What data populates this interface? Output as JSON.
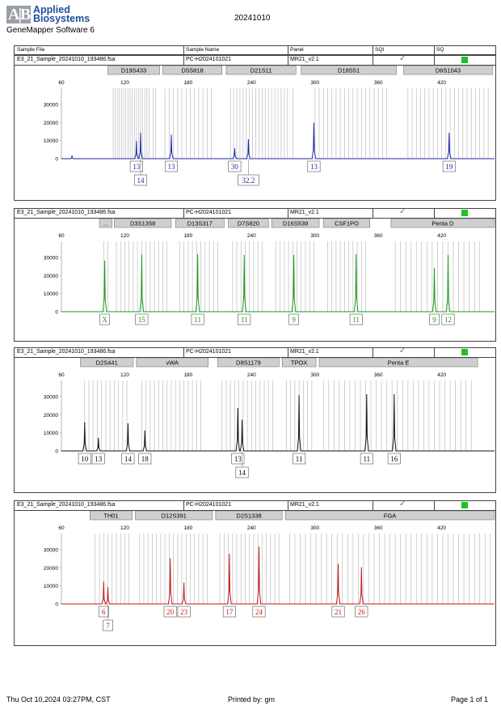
{
  "header": {
    "logo_mark": "A|B",
    "logo_line1": "Applied",
    "logo_line2": "Biosystems",
    "software": "GeneMapper Software 6",
    "date": "20241010",
    "columns": [
      "Sample File",
      "Sample Name",
      "Panel",
      "SQI",
      "SQ"
    ]
  },
  "footer": {
    "printed_at": "Thu Oct 10,2024 03:27PM, CST",
    "printed_by": "Printed by: gm",
    "page": "Page 1 of 1"
  },
  "colors": {
    "blue": "#1c2aa6",
    "green": "#1a9a1a",
    "black": "#111111",
    "red": "#c41a1a",
    "sq": "#22c022",
    "check": "#2e9a2e"
  },
  "panels": [
    {
      "sample_file": "E3_21_Sample_20241010_193486.fsa",
      "sample_name": "PC-H2024101021",
      "panel": "MR21_v2.1"
    },
    {
      "sample_file": "E3_21_Sample_20241010_193486.fsa",
      "sample_name": "PC-H2024101021",
      "panel": "MR21_v2.1"
    },
    {
      "sample_file": "E3_21_Sample_20241010_193486.fsa",
      "sample_name": "PC-H2024101021",
      "panel": "MR21_v2.1"
    },
    {
      "sample_file": "E3_21_Sample_20241010_193486.fsa",
      "sample_name": "PC-H2024101021",
      "panel": "MR21_v2.1"
    }
  ],
  "chart_data": [
    {
      "type": "line",
      "dye": "blue",
      "xlim": [
        60,
        470
      ],
      "ylim": [
        0,
        38000
      ],
      "x_ticks": [
        60,
        120,
        180,
        240,
        300,
        360,
        420
      ],
      "y_ticks": [
        0,
        10000,
        20000,
        30000
      ],
      "loci": [
        {
          "name": "D19S433",
          "range": [
            104,
            153
          ]
        },
        {
          "name": "D5S818",
          "range": [
            156,
            212
          ]
        },
        {
          "name": "D21S11",
          "range": [
            216,
            282
          ]
        },
        {
          "name": "D18S51",
          "range": [
            287,
            377
          ]
        },
        {
          "name": "D6S1043",
          "range": [
            384,
            468
          ]
        }
      ],
      "bins": [
        109,
        111,
        113,
        115,
        117,
        119,
        121,
        123,
        125,
        127,
        129,
        131,
        133,
        135,
        137,
        139,
        141,
        143,
        147,
        149,
        158,
        162,
        166,
        170,
        174,
        178,
        182,
        186,
        190,
        194,
        198,
        202,
        220,
        223,
        226,
        229,
        232,
        235,
        238,
        241,
        244,
        247,
        250,
        253,
        256,
        259,
        262,
        265,
        268,
        271,
        274,
        279,
        300,
        304,
        308,
        312,
        316,
        320,
        324,
        328,
        332,
        336,
        340,
        344,
        348,
        352,
        356,
        360,
        364,
        368,
        388,
        392,
        396,
        400,
        404,
        408,
        412,
        416,
        420,
        424,
        428,
        432,
        436,
        440,
        444,
        448,
        452,
        456,
        460,
        464
      ],
      "peaks": [
        {
          "x": 70,
          "y": 1500
        },
        {
          "x": 131,
          "y": 9500
        },
        {
          "x": 135,
          "y": 14000
        },
        {
          "x": 164,
          "y": 13000
        },
        {
          "x": 224,
          "y": 5500
        },
        {
          "x": 237,
          "y": 10500
        },
        {
          "x": 299,
          "y": 19500
        },
        {
          "x": 427,
          "y": 14000
        }
      ],
      "labels": [
        {
          "x": 131,
          "row": 0,
          "text": "13"
        },
        {
          "x": 135,
          "row": 1,
          "text": "14"
        },
        {
          "x": 164,
          "row": 0,
          "text": "13"
        },
        {
          "x": 224,
          "row": 0,
          "text": "30"
        },
        {
          "x": 237,
          "row": 1,
          "text": "32.2"
        },
        {
          "x": 299,
          "row": 0,
          "text": "13"
        },
        {
          "x": 427,
          "row": 0,
          "text": "19"
        }
      ]
    },
    {
      "type": "line",
      "dye": "green",
      "xlim": [
        60,
        470
      ],
      "ylim": [
        0,
        38000
      ],
      "x_ticks": [
        60,
        120,
        180,
        240,
        300,
        360,
        420
      ],
      "y_ticks": [
        0,
        10000,
        20000,
        30000
      ],
      "loci": [
        {
          "name": "...",
          "range": [
            96,
            108
          ]
        },
        {
          "name": "D3S1358",
          "range": [
            110,
            164
          ]
        },
        {
          "name": "D13S317",
          "range": [
            168,
            214
          ]
        },
        {
          "name": "D7S820",
          "range": [
            218,
            256
          ]
        },
        {
          "name": "D16S539",
          "range": [
            259,
            304
          ]
        },
        {
          "name": "CSF1PO",
          "range": [
            308,
            352
          ]
        },
        {
          "name": "Penta D",
          "range": [
            372,
            470
          ]
        }
      ],
      "bins": [
        100,
        104,
        112,
        116,
        120,
        124,
        128,
        132,
        136,
        140,
        144,
        148,
        152,
        156,
        160,
        172,
        176,
        180,
        184,
        188,
        192,
        196,
        200,
        204,
        208,
        222,
        226,
        230,
        234,
        238,
        242,
        246,
        250,
        263,
        267,
        271,
        275,
        279,
        283,
        287,
        291,
        295,
        299,
        312,
        316,
        320,
        324,
        328,
        332,
        336,
        340,
        344,
        348,
        376,
        381,
        386,
        391,
        396,
        401,
        406,
        411,
        416,
        421,
        426,
        431,
        436,
        441,
        446,
        451,
        456
      ],
      "peaks": [
        {
          "x": 101,
          "y": 28000
        },
        {
          "x": 136,
          "y": 31500
        },
        {
          "x": 189,
          "y": 31500
        },
        {
          "x": 233,
          "y": 31000
        },
        {
          "x": 280,
          "y": 31000
        },
        {
          "x": 339,
          "y": 31500
        },
        {
          "x": 413,
          "y": 24000
        },
        {
          "x": 426,
          "y": 31000
        }
      ],
      "labels": [
        {
          "x": 101,
          "row": 0,
          "text": "X"
        },
        {
          "x": 136,
          "row": 0,
          "text": "15"
        },
        {
          "x": 189,
          "row": 0,
          "text": "11"
        },
        {
          "x": 233,
          "row": 0,
          "text": "11"
        },
        {
          "x": 280,
          "row": 0,
          "text": "9"
        },
        {
          "x": 339,
          "row": 0,
          "text": "11"
        },
        {
          "x": 413,
          "row": 0,
          "text": "9"
        },
        {
          "x": 426,
          "row": 0,
          "text": "12"
        }
      ]
    },
    {
      "type": "line",
      "dye": "black",
      "xlim": [
        60,
        470
      ],
      "ylim": [
        0,
        38000
      ],
      "x_ticks": [
        60,
        120,
        180,
        240,
        300,
        360,
        420
      ],
      "y_ticks": [
        0,
        10000,
        20000,
        30000
      ],
      "loci": [
        {
          "name": "D2S441",
          "range": [
            78,
            128
          ]
        },
        {
          "name": "vWA",
          "range": [
            131,
            199
          ]
        },
        {
          "name": "D8S1179",
          "range": [
            208,
            266
          ]
        },
        {
          "name": "TPOX",
          "range": [
            269,
            301
          ]
        },
        {
          "name": "Penta E",
          "range": [
            304,
            454
          ]
        }
      ],
      "bins": [
        82,
        86,
        90,
        94,
        98,
        102,
        106,
        110,
        114,
        118,
        122,
        136,
        140,
        144,
        148,
        152,
        156,
        160,
        164,
        168,
        172,
        176,
        180,
        184,
        188,
        192,
        212,
        216,
        220,
        224,
        228,
        232,
        236,
        240,
        244,
        248,
        252,
        256,
        260,
        273,
        277,
        281,
        285,
        289,
        293,
        297,
        308,
        313,
        318,
        323,
        328,
        333,
        338,
        343,
        348,
        353,
        358,
        363,
        368,
        373,
        378,
        383,
        388,
        393,
        398,
        403,
        408,
        413,
        418,
        423,
        428,
        433,
        438,
        443,
        448
      ],
      "peaks": [
        {
          "x": 82,
          "y": 15500
        },
        {
          "x": 95,
          "y": 7000
        },
        {
          "x": 123,
          "y": 15000
        },
        {
          "x": 139,
          "y": 11000
        },
        {
          "x": 227,
          "y": 23500
        },
        {
          "x": 231,
          "y": 17000
        },
        {
          "x": 285,
          "y": 30500
        },
        {
          "x": 349,
          "y": 31000
        },
        {
          "x": 375,
          "y": 31000
        }
      ],
      "labels": [
        {
          "x": 82,
          "row": 0,
          "text": "10"
        },
        {
          "x": 95,
          "row": 0,
          "text": "13"
        },
        {
          "x": 123,
          "row": 0,
          "text": "14"
        },
        {
          "x": 139,
          "row": 0,
          "text": "18"
        },
        {
          "x": 227,
          "row": 0,
          "text": "13"
        },
        {
          "x": 231,
          "row": 1,
          "text": "14"
        },
        {
          "x": 285,
          "row": 0,
          "text": "11"
        },
        {
          "x": 349,
          "row": 0,
          "text": "11"
        },
        {
          "x": 375,
          "row": 0,
          "text": "16"
        }
      ]
    },
    {
      "type": "line",
      "dye": "red",
      "xlim": [
        60,
        470
      ],
      "ylim": [
        0,
        38000
      ],
      "x_ticks": [
        60,
        120,
        180,
        240,
        300,
        360,
        420
      ],
      "y_ticks": [
        0,
        10000,
        20000,
        30000
      ],
      "loci": [
        {
          "name": "TH01",
          "range": [
            87,
            127
          ]
        },
        {
          "name": "D12S391",
          "range": [
            130,
            203
          ]
        },
        {
          "name": "D2S1338",
          "range": [
            206,
            269
          ]
        },
        {
          "name": "FGA",
          "range": [
            272,
            470
          ]
        }
      ],
      "bins": [
        92,
        96,
        100,
        104,
        108,
        112,
        116,
        120,
        124,
        134,
        138,
        142,
        146,
        150,
        154,
        158,
        162,
        166,
        170,
        174,
        178,
        182,
        186,
        190,
        194,
        198,
        210,
        214,
        218,
        222,
        226,
        230,
        234,
        238,
        242,
        246,
        250,
        254,
        258,
        262,
        266,
        276,
        281,
        286,
        291,
        296,
        301,
        306,
        311,
        316,
        321,
        326,
        331,
        336,
        341,
        346,
        351,
        356,
        361,
        366,
        371,
        376,
        381,
        386,
        391,
        396,
        401,
        406,
        411,
        416,
        421,
        426,
        431,
        436,
        441,
        446,
        451,
        456,
        461,
        466
      ],
      "peaks": [
        {
          "x": 100,
          "y": 12000
        },
        {
          "x": 104,
          "y": 9000
        },
        {
          "x": 163,
          "y": 25000
        },
        {
          "x": 176,
          "y": 11500
        },
        {
          "x": 219,
          "y": 27500
        },
        {
          "x": 247,
          "y": 31500
        },
        {
          "x": 322,
          "y": 22000
        },
        {
          "x": 344,
          "y": 20000
        }
      ],
      "labels": [
        {
          "x": 100,
          "row": 0,
          "text": "6"
        },
        {
          "x": 104,
          "row": 1,
          "text": "7"
        },
        {
          "x": 163,
          "row": 0,
          "text": "20"
        },
        {
          "x": 176,
          "row": 0,
          "text": "23"
        },
        {
          "x": 219,
          "row": 0,
          "text": "17"
        },
        {
          "x": 247,
          "row": 0,
          "text": "24"
        },
        {
          "x": 322,
          "row": 0,
          "text": "21"
        },
        {
          "x": 344,
          "row": 0,
          "text": "26"
        }
      ]
    }
  ]
}
